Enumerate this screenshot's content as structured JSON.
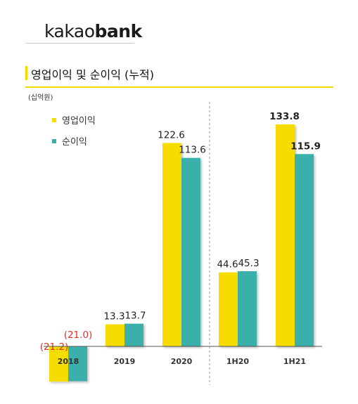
{
  "brand": {
    "logo_light": "kakao",
    "logo_bold": "bank"
  },
  "header": {
    "title": "영업이익 및 순이익 (누적)",
    "unit": "(십억원)"
  },
  "colors": {
    "operating": "#f7dc00",
    "net": "#3aafaa",
    "divider": "#999999",
    "negative_label": "#e0321e",
    "axis": "#555555"
  },
  "chart_data": {
    "type": "bar",
    "title": "영업이익 및 순이익 (누적)",
    "ylabel": "(십억원)",
    "categories": [
      "2018",
      "2019",
      "2020",
      "1H20",
      "1H21"
    ],
    "series": [
      {
        "name": "영업이익",
        "values": [
          -21.2,
          13.3,
          122.6,
          44.6,
          133.8
        ],
        "labels": [
          "(21.2)",
          "13.3",
          "122.6",
          "44.6",
          "133.8"
        ]
      },
      {
        "name": "순이익",
        "values": [
          -21.0,
          13.7,
          113.6,
          45.3,
          115.9
        ],
        "labels": [
          "(21.0)",
          "13.7",
          "113.6",
          "45.3",
          "115.9"
        ]
      }
    ],
    "highlighted_category": "1H21",
    "legend_position": "top-left",
    "grid": false
  }
}
